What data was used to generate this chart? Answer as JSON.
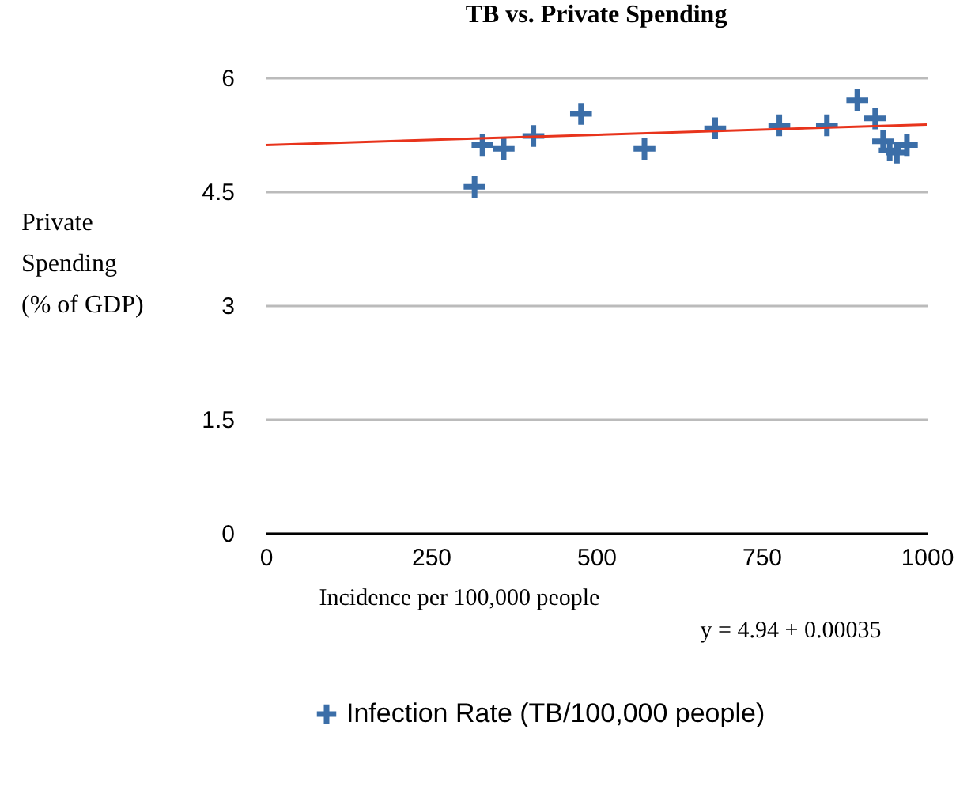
{
  "chart_data": {
    "type": "scatter",
    "title": "TB vs. Private Spending",
    "xlabel": "Incidence per 100,000 people",
    "ylabel": "Private Spending (% of GDP)",
    "annotations": [
      "y = 4.94 + 0.00035"
    ],
    "xlim": [
      0,
      1000
    ],
    "xticks": [
      0,
      250,
      500,
      750,
      1000
    ],
    "ylim": [
      0,
      6
    ],
    "yticks": [
      0,
      1.5,
      3,
      4.5,
      6
    ],
    "grid": "y",
    "legend": "bottom",
    "marker": "cross",
    "series": [
      {
        "name": "Infection Rate (TB/100,000 people)",
        "color": "#3b6ea8",
        "x": [
          316,
          328,
          360,
          405,
          477,
          573,
          680,
          777,
          849,
          895,
          922,
          934,
          944,
          955,
          970
        ],
        "values": [
          4.56,
          5.11,
          5.06,
          5.23,
          5.52,
          5.06,
          5.33,
          5.37,
          5.37,
          5.7,
          5.46,
          5.16,
          5.04,
          5.01,
          5.11
        ]
      },
      {
        "type": "line",
        "marker": "none",
        "color": "#e8341c",
        "x": [
          0,
          1000
        ],
        "values": [
          5.11,
          5.38
        ]
      }
    ]
  }
}
